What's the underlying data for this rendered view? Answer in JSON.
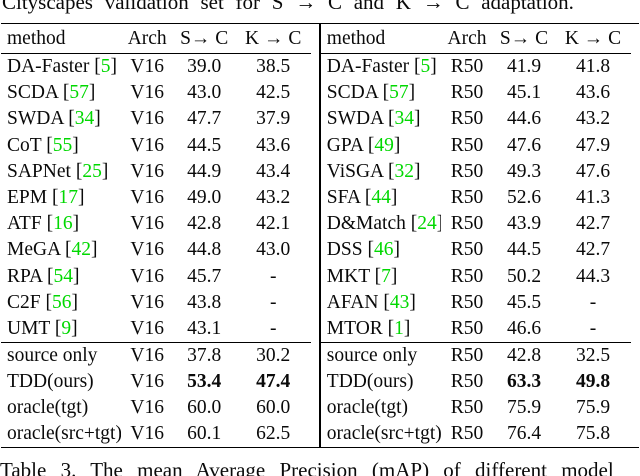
{
  "page": {
    "top_caption": "Cityscapes validation set for S → C and K → C adaptation.",
    "bottom_caption": "Table 3. The mean Average Precision (mAP) of different model"
  },
  "colors": {
    "citation_green": "#00d800",
    "text": "#0a0a0a",
    "rule": "#000000"
  },
  "table": {
    "header": {
      "method": "method",
      "arch": "Arch",
      "s2c": "S→ C",
      "k2c": "K → C"
    },
    "left": {
      "rows": [
        {
          "method": "DA-Faster",
          "cite": "5",
          "arch": "V16",
          "s2c": "39.0",
          "k2c": "38.5"
        },
        {
          "method": "SCDA",
          "cite": "57",
          "arch": "V16",
          "s2c": "43.0",
          "k2c": "42.5"
        },
        {
          "method": "SWDA",
          "cite": "34",
          "arch": "V16",
          "s2c": "47.7",
          "k2c": "37.9"
        },
        {
          "method": "CoT",
          "cite": "55",
          "arch": "V16",
          "s2c": "44.5",
          "k2c": "43.6"
        },
        {
          "method": "SAPNet",
          "cite": "25",
          "arch": "V16",
          "s2c": "44.9",
          "k2c": "43.4"
        },
        {
          "method": "EPM",
          "cite": "17",
          "arch": "V16",
          "s2c": "49.0",
          "k2c": "43.2"
        },
        {
          "method": "ATF",
          "cite": "16",
          "arch": "V16",
          "s2c": "42.8",
          "k2c": "42.1"
        },
        {
          "method": "MeGA",
          "cite": "42",
          "arch": "V16",
          "s2c": "44.8",
          "k2c": "43.0"
        },
        {
          "method": "RPA",
          "cite": "54",
          "arch": "V16",
          "s2c": "45.7",
          "k2c": "-"
        },
        {
          "method": "C2F",
          "cite": "56",
          "arch": "V16",
          "s2c": "43.8",
          "k2c": "-"
        },
        {
          "method": "UMT",
          "cite": "9",
          "arch": "V16",
          "s2c": "43.1",
          "k2c": "-"
        }
      ],
      "summary_rows": [
        {
          "method": "source only",
          "arch": "V16",
          "s2c": "37.8",
          "k2c": "30.2",
          "bold": false
        },
        {
          "method": "TDD(ours)",
          "arch": "V16",
          "s2c": "53.4",
          "k2c": "47.4",
          "bold": true
        },
        {
          "method": "oracle(tgt)",
          "arch": "V16",
          "s2c": "60.0",
          "k2c": "60.0",
          "bold": false
        },
        {
          "method": "oracle(src+tgt)",
          "arch": "V16",
          "s2c": "60.1",
          "k2c": "62.5",
          "bold": false
        }
      ]
    },
    "right": {
      "rows": [
        {
          "method": "DA-Faster",
          "cite": "5",
          "arch": "R50",
          "s2c": "41.9",
          "k2c": "41.8"
        },
        {
          "method": "SCDA",
          "cite": "57",
          "arch": "R50",
          "s2c": "45.1",
          "k2c": "43.6"
        },
        {
          "method": "SWDA",
          "cite": "34",
          "arch": "R50",
          "s2c": "44.6",
          "k2c": "43.2"
        },
        {
          "method": "GPA",
          "cite": "49",
          "arch": "R50",
          "s2c": "47.6",
          "k2c": "47.9"
        },
        {
          "method": "ViSGA",
          "cite": "32",
          "arch": "R50",
          "s2c": "49.3",
          "k2c": "47.6"
        },
        {
          "method": "SFA",
          "cite": "44",
          "arch": "R50",
          "s2c": "52.6",
          "k2c": "41.3"
        },
        {
          "method": "D&Match",
          "cite": "24",
          "arch": "R50",
          "s2c": "43.9",
          "k2c": "42.7"
        },
        {
          "method": "DSS",
          "cite": "46",
          "arch": "R50",
          "s2c": "44.5",
          "k2c": "42.7"
        },
        {
          "method": "MKT",
          "cite": "7",
          "arch": "R50",
          "s2c": "50.2",
          "k2c": "44.3"
        },
        {
          "method": "AFAN",
          "cite": "43",
          "arch": "R50",
          "s2c": "45.5",
          "k2c": "-"
        },
        {
          "method": "MTOR",
          "cite": "1",
          "arch": "R50",
          "s2c": "46.6",
          "k2c": "-"
        }
      ],
      "summary_rows": [
        {
          "method": "source only",
          "arch": "R50",
          "s2c": "42.8",
          "k2c": "32.5",
          "bold": false
        },
        {
          "method": "TDD(ours)",
          "arch": "R50",
          "s2c": "63.3",
          "k2c": "49.8",
          "bold": true
        },
        {
          "method": "oracle(tgt)",
          "arch": "R50",
          "s2c": "75.9",
          "k2c": "75.9",
          "bold": false
        },
        {
          "method": "oracle(src+tgt)",
          "arch": "R50",
          "s2c": "76.4",
          "k2c": "75.8",
          "bold": false
        }
      ]
    }
  }
}
